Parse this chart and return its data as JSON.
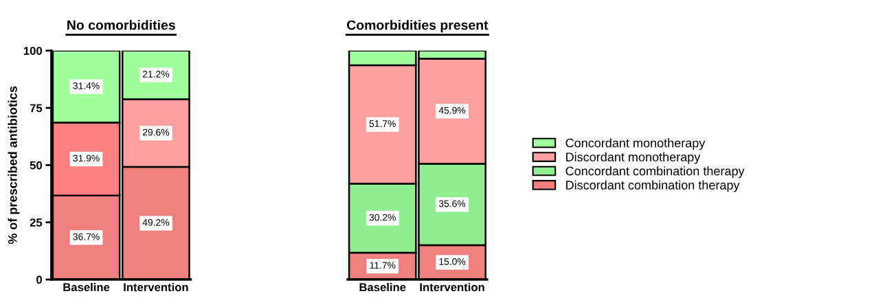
{
  "chart_data": [
    {
      "type": "bar",
      "stacked": true,
      "title": "No comorbidities",
      "ylabel": "% of prescribed antibiotics",
      "categories": [
        "Baseline",
        "Intervention"
      ],
      "ylim": [
        0,
        100
      ],
      "yticks": [
        0,
        25,
        50,
        75,
        100
      ],
      "grid": false,
      "legend": false,
      "series": [
        {
          "color": "#f08080",
          "values": [
            36.7,
            49.2
          ],
          "value_labels": [
            "36.7%",
            "49.2%"
          ]
        },
        {
          "color": "#90ee90",
          "values": [
            null,
            null
          ],
          "value_labels": [
            null,
            null
          ]
        },
        {
          "colors": [
            "#ff8080",
            "#ffa0a0"
          ],
          "values": [
            31.9,
            29.6
          ],
          "value_labels": [
            "31.9%",
            "29.6%"
          ]
        },
        {
          "color": "#a0ff9c",
          "values": [
            31.4,
            21.2
          ],
          "value_labels": [
            "31.4%",
            "21.2%"
          ]
        }
      ]
    },
    {
      "type": "bar",
      "stacked": true,
      "title": "Comorbidities present",
      "categories": [
        "Baseline",
        "Intervention"
      ],
      "ylim": [
        0,
        100
      ],
      "tick_labels": "x",
      "grid": false,
      "legend": "right",
      "series": [
        {
          "name": "Discordant combination therapy",
          "color": "#f08080",
          "values": [
            11.7,
            15.0
          ],
          "value_labels": [
            "11.7%",
            "15.0%"
          ]
        },
        {
          "name": "Concordant combination therapy",
          "color": "#90ee90",
          "values": [
            30.2,
            35.6
          ],
          "value_labels": [
            "30.2%",
            "35.6%"
          ]
        },
        {
          "name": "Discordant monotherapy",
          "color": "#ffa0a0",
          "values": [
            51.7,
            45.9
          ],
          "value_labels": [
            "51.7%",
            "45.9%"
          ]
        },
        {
          "name": "Concordant monotherapy",
          "color": "#a0ff9c",
          "values": [
            6.4,
            3.5
          ],
          "value_labels": [
            null,
            null
          ]
        }
      ]
    }
  ]
}
